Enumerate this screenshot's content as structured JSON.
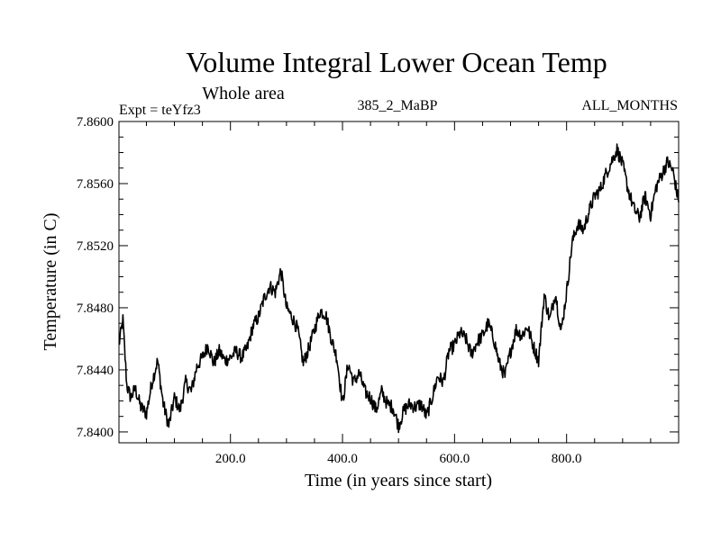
{
  "chart_data": {
    "type": "line",
    "title": "Volume Integral Lower Ocean Temp",
    "subtitle": "Whole area",
    "header_left": "Expt = teYfz3",
    "header_center": "385_2_MaBP",
    "header_right": "ALL_MONTHS",
    "xlabel": "Time (in years since start)",
    "ylabel": "Temperature (in C)",
    "xlim": [
      1,
      1000
    ],
    "ylim": [
      7.8393,
      7.86
    ],
    "x_ticks": [
      200,
      400,
      600,
      800
    ],
    "x_tick_labels": [
      "200.0",
      "400.0",
      "600.0",
      "800.0"
    ],
    "y_ticks": [
      7.84,
      7.844,
      7.848,
      7.852,
      7.856,
      7.86
    ],
    "y_tick_labels": [
      "7.8400",
      "7.8440",
      "7.8480",
      "7.8520",
      "7.8560",
      "7.8600"
    ],
    "grid": false,
    "series": [
      {
        "name": "Volume Integral Lower Ocean Temp",
        "x": [
          1,
          8,
          15,
          22,
          30,
          40,
          50,
          60,
          70,
          80,
          90,
          100,
          110,
          120,
          130,
          140,
          150,
          160,
          170,
          180,
          190,
          200,
          210,
          220,
          230,
          240,
          250,
          260,
          270,
          280,
          290,
          300,
          310,
          320,
          330,
          340,
          350,
          360,
          370,
          380,
          390,
          400,
          410,
          420,
          430,
          440,
          450,
          460,
          470,
          480,
          490,
          500,
          510,
          520,
          530,
          540,
          550,
          560,
          570,
          580,
          590,
          600,
          610,
          620,
          630,
          640,
          650,
          660,
          670,
          680,
          690,
          700,
          710,
          720,
          730,
          740,
          750,
          760,
          770,
          780,
          790,
          800,
          810,
          820,
          830,
          840,
          850,
          860,
          870,
          880,
          890,
          900,
          910,
          920,
          930,
          940,
          950,
          960,
          970,
          980,
          990,
          1000
        ],
        "y": [
          7.8456,
          7.8472,
          7.843,
          7.8422,
          7.8428,
          7.8416,
          7.8412,
          7.8432,
          7.8446,
          7.8418,
          7.8404,
          7.8422,
          7.8414,
          7.8432,
          7.8426,
          7.8442,
          7.8448,
          7.8456,
          7.8444,
          7.8452,
          7.8446,
          7.8448,
          7.8452,
          7.8448,
          7.8454,
          7.8468,
          7.8474,
          7.8486,
          7.8494,
          7.849,
          7.8504,
          7.848,
          7.8474,
          7.8466,
          7.8444,
          7.8454,
          7.8466,
          7.8478,
          7.8476,
          7.846,
          7.8448,
          7.8418,
          7.8444,
          7.8432,
          7.8438,
          7.8426,
          7.8422,
          7.8414,
          7.8426,
          7.8418,
          7.8416,
          7.8404,
          7.8414,
          7.8418,
          7.8416,
          7.8418,
          7.841,
          7.8422,
          7.8436,
          7.8432,
          7.8452,
          7.8456,
          7.8464,
          7.846,
          7.845,
          7.8458,
          7.8462,
          7.847,
          7.846,
          7.8444,
          7.8436,
          7.8452,
          7.8466,
          7.8462,
          7.8468,
          7.8456,
          7.8446,
          7.8488,
          7.8472,
          7.849,
          7.8464,
          7.849,
          7.8522,
          7.8534,
          7.853,
          7.8542,
          7.8552,
          7.8556,
          7.8566,
          7.8574,
          7.8582,
          7.8572,
          7.8556,
          7.8544,
          7.8538,
          7.8552,
          7.854,
          7.8558,
          7.8566,
          7.8574,
          7.8568,
          7.8548
        ]
      }
    ]
  }
}
